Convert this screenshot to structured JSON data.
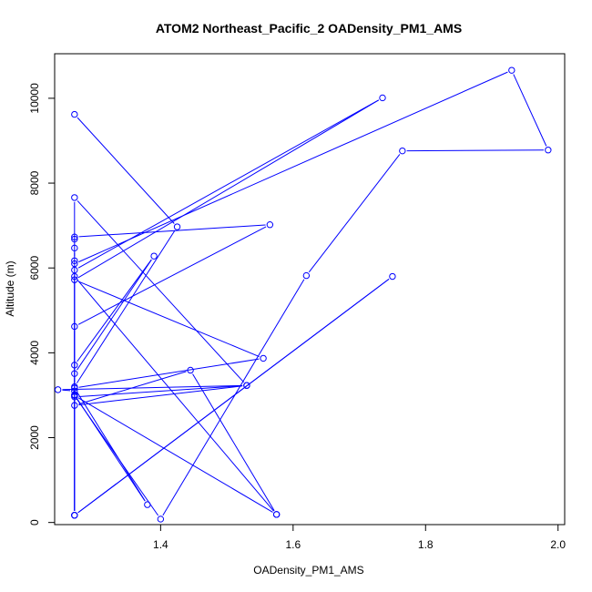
{
  "chart_data": {
    "type": "line",
    "title": "ATOM2 Northeast_Pacific_2 OADensity_PM1_AMS",
    "xlabel": "OADensity_PM1_AMS",
    "ylabel": "Altitude (m)",
    "xlim": [
      1.24,
      2.01
    ],
    "ylim": [
      -50,
      11050
    ],
    "x_ticks": [
      1.4,
      1.6,
      1.8,
      2.0
    ],
    "x_tick_labels": [
      "1.4",
      "1.6",
      "1.8",
      "2.0"
    ],
    "y_ticks": [
      0,
      2000,
      4000,
      6000,
      8000,
      10000
    ],
    "y_tick_labels": [
      "0",
      "2000",
      "4000",
      "6000",
      "8000",
      "10000"
    ],
    "grid": false,
    "legend": "none",
    "series_color": "#0000ff",
    "series": [
      {
        "points": [
          [
            1.27,
            9620
          ],
          [
            1.425,
            6970
          ],
          [
            1.27,
            3200
          ],
          [
            1.27,
            5950
          ],
          [
            1.735,
            10010
          ],
          [
            1.27,
            5720
          ],
          [
            1.555,
            3870
          ],
          [
            1.27,
            3170
          ],
          [
            1.38,
            420
          ],
          [
            1.27,
            3010
          ],
          [
            1.27,
            170
          ],
          [
            1.27,
            7660
          ],
          [
            1.53,
            3230
          ],
          [
            1.27,
            2960
          ],
          [
            1.27,
            170
          ],
          [
            1.75,
            5800
          ],
          [
            1.27,
            170
          ],
          [
            1.27,
            5800
          ],
          [
            1.575,
            190
          ],
          [
            1.27,
            2990
          ],
          [
            1.4,
            80
          ],
          [
            1.62,
            5820
          ],
          [
            1.765,
            8760
          ],
          [
            1.985,
            8780
          ],
          [
            1.93,
            10660
          ],
          [
            1.27,
            6100
          ],
          [
            1.27,
            6170
          ],
          [
            1.27,
            6470
          ],
          [
            1.27,
            6680
          ],
          [
            1.27,
            6730
          ],
          [
            1.565,
            7020
          ],
          [
            1.27,
            4620
          ],
          [
            1.27,
            3710
          ],
          [
            1.39,
            6280
          ],
          [
            1.27,
            3510
          ],
          [
            1.27,
            3100
          ],
          [
            1.245,
            3130
          ],
          [
            1.53,
            3230
          ],
          [
            1.27,
            2760
          ],
          [
            1.445,
            3590
          ],
          [
            1.575,
            190
          ]
        ]
      }
    ]
  }
}
